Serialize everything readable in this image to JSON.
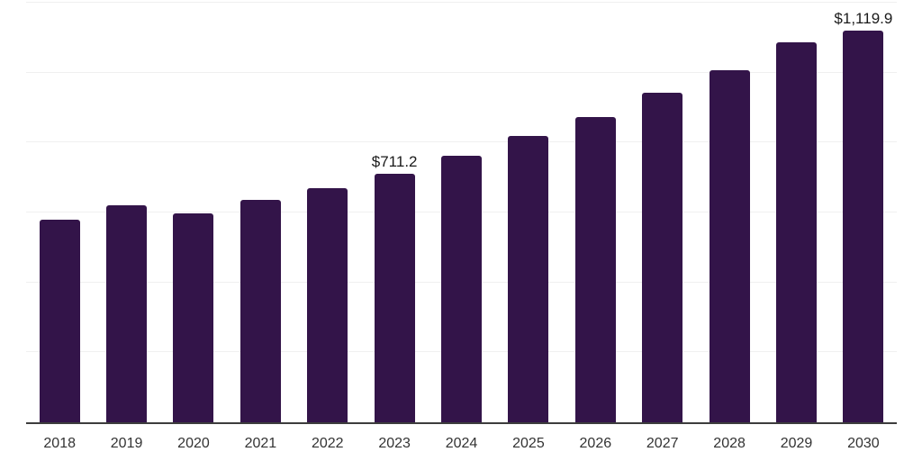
{
  "chart_data": {
    "type": "bar",
    "title": "",
    "xlabel": "",
    "ylabel": "",
    "categories": [
      "2018",
      "2019",
      "2020",
      "2021",
      "2022",
      "2023",
      "2024",
      "2025",
      "2026",
      "2027",
      "2028",
      "2029",
      "2030"
    ],
    "values": [
      579,
      620,
      598,
      636,
      669,
      711.2,
      762,
      819,
      873,
      943,
      1006,
      1087,
      1119.9
    ],
    "value_labels": [
      "",
      "",
      "",
      "",
      "",
      "$711.2",
      "",
      "",
      "",
      "",
      "",
      "",
      "$1,119.9"
    ],
    "ylim": [
      0,
      1200
    ],
    "grid_step": 200,
    "grid": true,
    "legend": false,
    "colors": {
      "bar": "#331449",
      "grid": "#f0f0f0",
      "axis": "#3d3d3d",
      "tick_label": "#333333",
      "data_label": "#1a1a1a"
    }
  }
}
